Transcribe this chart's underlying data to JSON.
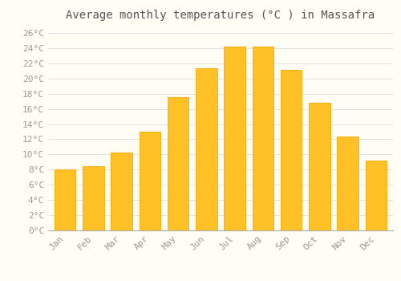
{
  "title": "Average monthly temperatures (°C ) in Massafra",
  "months": [
    "Jan",
    "Feb",
    "Mar",
    "Apr",
    "May",
    "Jun",
    "Jul",
    "Aug",
    "Sep",
    "Oct",
    "Nov",
    "Dec"
  ],
  "temperatures": [
    8.0,
    8.5,
    10.2,
    13.0,
    17.5,
    21.3,
    24.2,
    24.2,
    21.1,
    16.8,
    12.4,
    9.2
  ],
  "bar_color_face": "#FFC125",
  "bar_color_edge": "#FFA500",
  "background_color": "#FFFEF5",
  "grid_color": "#DDDDDD",
  "ylim": [
    0,
    27
  ],
  "yticks": [
    0,
    2,
    4,
    6,
    8,
    10,
    12,
    14,
    16,
    18,
    20,
    22,
    24,
    26
  ],
  "ytick_labels": [
    "0°C",
    "2°C",
    "4°C",
    "6°C",
    "8°C",
    "10°C",
    "12°C",
    "14°C",
    "16°C",
    "18°C",
    "20°C",
    "22°C",
    "24°C",
    "26°C"
  ],
  "title_fontsize": 10,
  "tick_fontsize": 8,
  "tick_color": "#999999",
  "font_family": "monospace",
  "bar_width": 0.75
}
